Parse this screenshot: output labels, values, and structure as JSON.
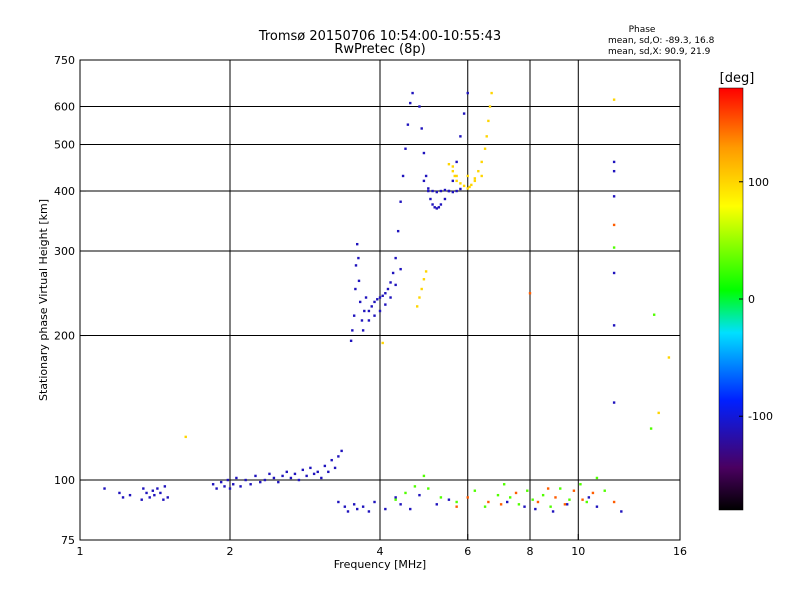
{
  "header": {
    "title_line1": "Tromsø 20150706 10:54:00-10:55:43",
    "title_line2": "RwPretec (8p)",
    "phase_heading": "Phase",
    "phase_o": "mean, sd,O: -89.3, 16.8",
    "phase_x": "mean, sd,X:  90.9, 21.9"
  },
  "chart_data": {
    "type": "scatter",
    "xlabel": "Frequency [MHz]",
    "ylabel": "Stationary phase Virtual Height [km]",
    "xscale": "log",
    "yscale": "log",
    "xlim": [
      1,
      16
    ],
    "ylim": [
      75,
      750
    ],
    "x_ticks": [
      1,
      2,
      4,
      6,
      8,
      10,
      16
    ],
    "x_tick_labels": [
      "1",
      "2",
      "4",
      "6",
      "8",
      "10",
      "16"
    ],
    "x_gridlines": [
      2,
      4,
      6,
      8,
      10
    ],
    "y_ticks": [
      75,
      100,
      200,
      300,
      400,
      500,
      600,
      750
    ],
    "y_tick_labels": [
      "75",
      "100",
      "200",
      "300",
      "400",
      "500",
      "600",
      "750"
    ],
    "y_gridlines": [
      100,
      200,
      300,
      400,
      500,
      600
    ],
    "grid": true,
    "colorbar": {
      "label": "[deg]",
      "range": [
        -180,
        180
      ],
      "ticks": [
        100,
        0,
        -100
      ],
      "tick_labels": [
        "100",
        "0",
        "-100"
      ],
      "colors": [
        "#000000",
        "#4a0060",
        "#0020ff",
        "#00e0ff",
        "#00ff00",
        "#ffff00",
        "#ff9900",
        "#ff0000"
      ]
    },
    "series": [
      {
        "color_phase": -110,
        "points": [
          [
            1.12,
            96
          ],
          [
            1.2,
            94
          ],
          [
            1.22,
            92
          ],
          [
            1.26,
            93
          ],
          [
            1.33,
            91
          ],
          [
            1.34,
            96
          ],
          [
            1.36,
            94
          ],
          [
            1.38,
            92
          ],
          [
            1.4,
            95
          ],
          [
            1.41,
            93
          ],
          [
            1.43,
            96
          ],
          [
            1.45,
            94
          ],
          [
            1.47,
            91
          ],
          [
            1.48,
            97
          ],
          [
            1.5,
            92
          ],
          [
            1.85,
            98
          ],
          [
            1.88,
            96
          ],
          [
            1.92,
            99
          ],
          [
            1.95,
            97
          ],
          [
            1.98,
            100
          ],
          [
            2.0,
            96
          ],
          [
            2.03,
            98
          ],
          [
            2.06,
            101
          ],
          [
            2.1,
            97
          ],
          [
            2.15,
            100
          ],
          [
            2.2,
            98
          ],
          [
            2.25,
            102
          ],
          [
            2.3,
            99
          ],
          [
            2.35,
            100
          ],
          [
            2.4,
            103
          ],
          [
            2.45,
            101
          ],
          [
            2.5,
            99
          ],
          [
            2.55,
            102
          ],
          [
            2.6,
            104
          ],
          [
            2.65,
            101
          ],
          [
            2.7,
            103
          ],
          [
            2.75,
            100
          ],
          [
            2.8,
            105
          ],
          [
            2.85,
            102
          ],
          [
            2.9,
            106
          ],
          [
            2.95,
            103
          ],
          [
            3.0,
            104
          ],
          [
            3.05,
            101
          ],
          [
            3.1,
            107
          ],
          [
            3.15,
            104
          ],
          [
            3.2,
            110
          ],
          [
            3.25,
            106
          ],
          [
            3.3,
            112
          ],
          [
            3.35,
            115
          ],
          [
            3.5,
            195
          ],
          [
            3.52,
            205
          ],
          [
            3.55,
            220
          ],
          [
            3.57,
            250
          ],
          [
            3.58,
            280
          ],
          [
            3.6,
            310
          ],
          [
            3.62,
            290
          ],
          [
            3.63,
            260
          ],
          [
            3.65,
            235
          ],
          [
            3.68,
            215
          ],
          [
            3.7,
            205
          ],
          [
            3.72,
            225
          ],
          [
            3.75,
            240
          ],
          [
            3.8,
            225
          ],
          [
            3.85,
            230
          ],
          [
            3.9,
            235
          ],
          [
            3.95,
            238
          ],
          [
            4.0,
            240
          ],
          [
            4.05,
            242
          ],
          [
            4.1,
            245
          ],
          [
            4.15,
            250
          ],
          [
            4.2,
            258
          ],
          [
            4.25,
            270
          ],
          [
            4.3,
            290
          ],
          [
            4.35,
            330
          ],
          [
            4.4,
            380
          ],
          [
            4.45,
            430
          ],
          [
            4.5,
            490
          ],
          [
            4.55,
            550
          ],
          [
            4.6,
            610
          ],
          [
            4.65,
            640
          ],
          [
            3.8,
            215
          ],
          [
            3.9,
            220
          ],
          [
            4.0,
            225
          ],
          [
            4.1,
            232
          ],
          [
            4.2,
            240
          ],
          [
            4.3,
            255
          ],
          [
            4.4,
            275
          ],
          [
            4.8,
            600
          ],
          [
            4.85,
            540
          ],
          [
            4.9,
            480
          ],
          [
            4.95,
            430
          ],
          [
            5.0,
            400
          ],
          [
            5.05,
            385
          ],
          [
            5.1,
            375
          ],
          [
            5.15,
            370
          ],
          [
            5.2,
            368
          ],
          [
            5.25,
            370
          ],
          [
            5.3,
            375
          ],
          [
            5.4,
            385
          ],
          [
            5.5,
            400
          ],
          [
            5.6,
            420
          ],
          [
            5.7,
            460
          ],
          [
            5.8,
            520
          ],
          [
            5.9,
            580
          ],
          [
            6.0,
            640
          ],
          [
            4.9,
            420
          ],
          [
            5.0,
            405
          ],
          [
            5.1,
            400
          ],
          [
            5.2,
            398
          ],
          [
            5.3,
            400
          ],
          [
            5.4,
            402
          ],
          [
            5.5,
            400
          ],
          [
            5.6,
            398
          ],
          [
            5.7,
            400
          ],
          [
            5.8,
            404
          ],
          [
            3.3,
            90
          ],
          [
            3.4,
            88
          ],
          [
            3.45,
            86
          ],
          [
            3.55,
            89
          ],
          [
            3.6,
            87
          ],
          [
            3.7,
            88
          ],
          [
            3.8,
            86
          ],
          [
            3.9,
            90
          ],
          [
            4.1,
            87
          ],
          [
            4.3,
            92
          ],
          [
            4.4,
            89
          ],
          [
            4.6,
            87
          ],
          [
            4.8,
            93
          ],
          [
            5.2,
            89
          ],
          [
            5.5,
            91
          ],
          [
            7.2,
            90
          ],
          [
            7.8,
            88
          ],
          [
            8.2,
            87
          ],
          [
            8.9,
            86
          ],
          [
            9.5,
            89
          ],
          [
            10.5,
            92
          ],
          [
            11.8,
            460
          ],
          [
            11.8,
            440
          ],
          [
            11.8,
            390
          ],
          [
            11.8,
            270
          ],
          [
            11.8,
            210
          ],
          [
            11.8,
            145
          ],
          [
            10.9,
            88
          ],
          [
            12.2,
            86
          ]
        ]
      },
      {
        "color_phase": 100,
        "points": [
          [
            4.75,
            230
          ],
          [
            4.8,
            240
          ],
          [
            4.85,
            250
          ],
          [
            4.9,
            262
          ],
          [
            4.95,
            272
          ],
          [
            5.6,
            450
          ],
          [
            5.65,
            430
          ],
          [
            5.7,
            420
          ],
          [
            5.8,
            415
          ],
          [
            5.9,
            410
          ],
          [
            6.0,
            405
          ],
          [
            6.05,
            408
          ],
          [
            6.1,
            412
          ],
          [
            6.2,
            420
          ],
          [
            6.3,
            440
          ],
          [
            6.4,
            460
          ],
          [
            6.5,
            490
          ],
          [
            6.55,
            520
          ],
          [
            6.6,
            560
          ],
          [
            6.65,
            600
          ],
          [
            6.7,
            640
          ],
          [
            5.5,
            455
          ],
          [
            5.6,
            440
          ],
          [
            5.7,
            430
          ],
          [
            6.0,
            430
          ],
          [
            6.2,
            425
          ],
          [
            6.4,
            430
          ],
          [
            1.63,
            123
          ],
          [
            14.5,
            138
          ],
          [
            15.2,
            180
          ],
          [
            11.8,
            620
          ],
          [
            4.05,
            193
          ]
        ]
      },
      {
        "color_phase": 30,
        "points": [
          [
            4.3,
            91
          ],
          [
            4.5,
            94
          ],
          [
            4.7,
            97
          ],
          [
            4.9,
            102
          ],
          [
            5.0,
            96
          ],
          [
            5.3,
            92
          ],
          [
            5.7,
            90
          ],
          [
            6.2,
            95
          ],
          [
            6.5,
            88
          ],
          [
            6.9,
            93
          ],
          [
            7.1,
            98
          ],
          [
            7.3,
            92
          ],
          [
            7.6,
            89
          ],
          [
            7.9,
            95
          ],
          [
            8.1,
            91
          ],
          [
            8.5,
            93
          ],
          [
            8.8,
            88
          ],
          [
            9.2,
            96
          ],
          [
            9.6,
            91
          ],
          [
            10.1,
            98
          ],
          [
            10.4,
            90
          ],
          [
            10.9,
            101
          ],
          [
            11.3,
            95
          ],
          [
            14.2,
            221
          ],
          [
            14.0,
            128
          ],
          [
            11.8,
            305
          ]
        ]
      },
      {
        "color_phase": 150,
        "points": [
          [
            5.7,
            88
          ],
          [
            6.0,
            92
          ],
          [
            6.6,
            90
          ],
          [
            7.0,
            89
          ],
          [
            7.5,
            94
          ],
          [
            8.0,
            245
          ],
          [
            8.3,
            90
          ],
          [
            8.7,
            96
          ],
          [
            9.0,
            92
          ],
          [
            9.4,
            89
          ],
          [
            9.8,
            95
          ],
          [
            10.2,
            91
          ],
          [
            10.7,
            94
          ],
          [
            11.8,
            340
          ],
          [
            11.8,
            90
          ]
        ]
      }
    ]
  }
}
